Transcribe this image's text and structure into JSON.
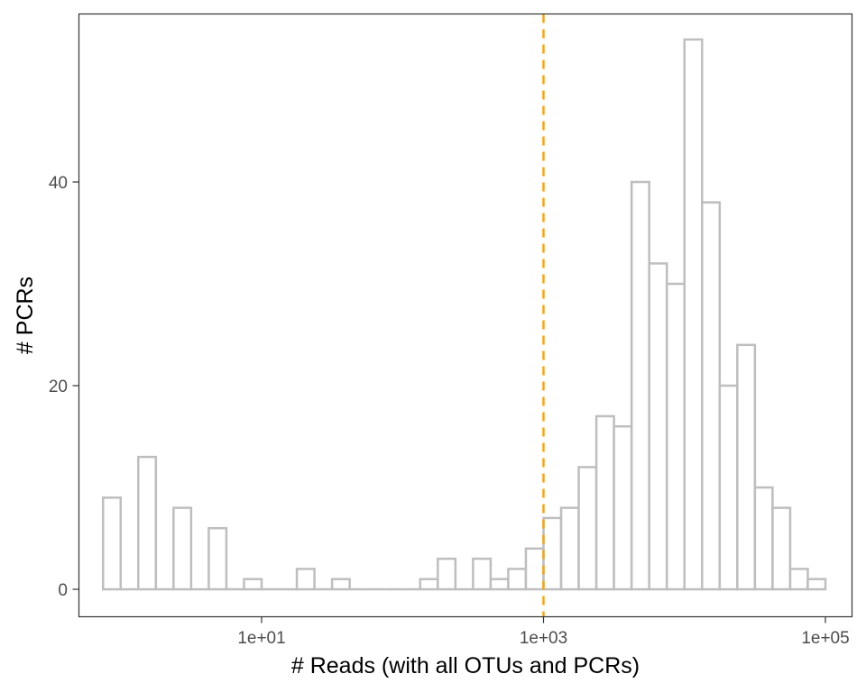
{
  "chart_data": {
    "type": "bar",
    "subtype": "histogram",
    "title": "",
    "xlabel": "# Reads (with all OTUs and PCRs)",
    "ylabel": "# PCRs",
    "x_scale": "log10",
    "x_ticks": [
      {
        "value": 10,
        "label": "1e+01"
      },
      {
        "value": 1000,
        "label": "1e+03"
      },
      {
        "value": 100000,
        "label": "1e+05"
      }
    ],
    "y_ticks": [
      {
        "value": 0,
        "label": "0"
      },
      {
        "value": 20,
        "label": "20"
      },
      {
        "value": 40,
        "label": "40"
      }
    ],
    "ylim": [
      0,
      55
    ],
    "bin_width_log10": 0.125,
    "bins_log_start": [
      -0.125,
      0.0,
      0.125,
      0.25,
      0.375,
      0.5,
      0.625,
      0.75,
      0.875,
      1.0,
      1.125,
      1.25,
      1.375,
      1.5,
      1.625,
      1.75,
      1.875,
      2.0,
      2.125,
      2.25,
      2.375,
      2.5,
      2.625,
      2.75,
      2.875,
      3.0,
      3.125,
      3.25,
      3.375,
      3.5,
      3.625,
      3.75,
      3.875,
      4.0,
      4.125,
      4.25,
      4.375,
      4.5,
      4.625,
      4.75,
      4.875
    ],
    "counts": [
      9,
      0,
      13,
      0,
      8,
      0,
      6,
      0,
      1,
      0,
      0,
      2,
      0,
      1,
      0,
      0,
      0,
      0,
      1,
      3,
      0,
      3,
      1,
      2,
      4,
      7,
      8,
      12,
      17,
      16,
      40,
      32,
      30,
      54,
      38,
      20,
      24,
      10,
      8,
      2,
      1
    ],
    "reference_line": {
      "x": 1000,
      "style": "dashed",
      "color": "#FFA500"
    },
    "bar_outline_color": "#BEBEBE",
    "bar_fill_color": "#FFFFFF",
    "grid": false,
    "legend": "none"
  }
}
